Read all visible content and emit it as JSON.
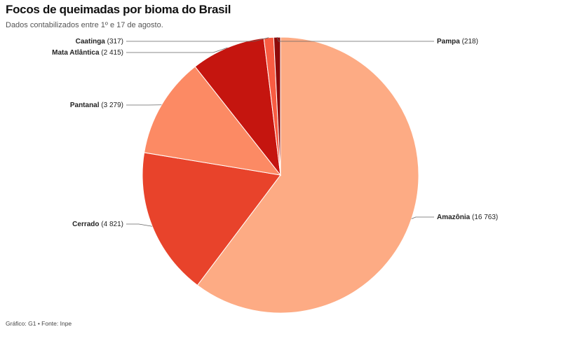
{
  "header": {
    "title": "Focos de queimadas por bioma do Brasil",
    "subtitle": "Dados contabilizados entre 1º e 17 de agosto."
  },
  "footer": {
    "credit": "Gráfico: G1 • Fonte: Inpe"
  },
  "chart_data": {
    "type": "pie",
    "title": "Focos de queimadas por bioma do Brasil",
    "subtitle": "Dados contabilizados entre 1º e 17 de agosto.",
    "slices": [
      {
        "name": "Amazônia",
        "value": 16763,
        "label": "(16 763)",
        "color": "#fdab84"
      },
      {
        "name": "Cerrado",
        "value": 4821,
        "label": "(4 821)",
        "color": "#e8432b"
      },
      {
        "name": "Pantanal",
        "value": 3279,
        "label": "(3 279)",
        "color": "#fc8a64"
      },
      {
        "name": "Mata Atlântica",
        "value": 2415,
        "label": "(2 415)",
        "color": "#c5150f"
      },
      {
        "name": "Caatinga",
        "value": 317,
        "label": "(317)",
        "color": "#f85c42"
      },
      {
        "name": "Pampa",
        "value": 218,
        "label": "(218)",
        "color": "#8f0a0a"
      }
    ],
    "legend": "none"
  }
}
